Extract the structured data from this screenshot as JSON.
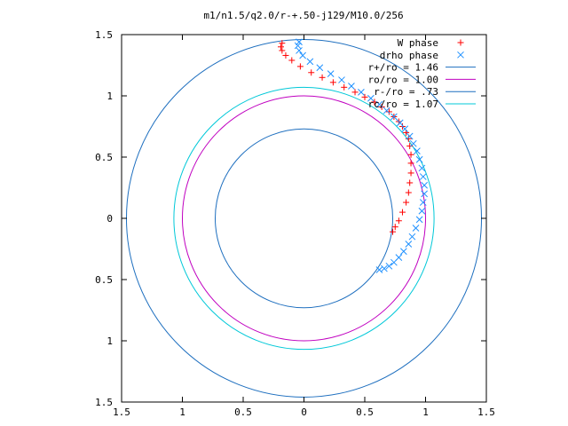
{
  "chart_data": {
    "type": "scatter",
    "title": "m1/n1.5/q2.0/r-+.50-j129/M10.0/256",
    "xlabel": "",
    "ylabel": "",
    "xlim": [
      -1.5,
      1.5
    ],
    "ylim": [
      -1.5,
      1.5
    ],
    "x_ticks": [
      "1.5",
      "1",
      "0.5",
      "0",
      "0.5",
      "1",
      "1.5"
    ],
    "y_ticks": [
      "1.5",
      "1",
      "0.5",
      "0",
      "0.5",
      "1",
      "1.5"
    ],
    "grid": false,
    "legend_position": "top-right",
    "series": [
      {
        "name": "W phase",
        "marker": "+",
        "color": "#ff0000",
        "x": [
          0.73,
          0.75,
          0.78,
          0.81,
          0.84,
          0.86,
          0.87,
          0.88,
          0.88,
          0.88,
          0.87,
          0.86,
          0.84,
          0.81,
          0.78,
          0.74,
          0.7,
          0.64,
          0.58,
          0.5,
          0.42,
          0.33,
          0.24,
          0.15,
          0.06,
          -0.03,
          -0.1,
          -0.15,
          -0.18,
          -0.19,
          -0.18
        ],
        "y": [
          -0.11,
          -0.07,
          -0.02,
          0.05,
          0.13,
          0.21,
          0.29,
          0.37,
          0.45,
          0.52,
          0.59,
          0.65,
          0.7,
          0.75,
          0.79,
          0.83,
          0.87,
          0.91,
          0.95,
          0.99,
          1.03,
          1.07,
          1.11,
          1.15,
          1.19,
          1.24,
          1.29,
          1.33,
          1.37,
          1.4,
          1.43
        ]
      },
      {
        "name": "drho phase",
        "marker": "x",
        "color": "#1e90ff",
        "x": [
          0.62,
          0.66,
          0.7,
          0.74,
          0.78,
          0.82,
          0.86,
          0.89,
          0.92,
          0.95,
          0.97,
          0.98,
          0.99,
          0.99,
          0.98,
          0.97,
          0.95,
          0.93,
          0.9,
          0.87,
          0.83,
          0.79,
          0.74,
          0.68,
          0.62,
          0.55,
          0.47,
          0.39,
          0.31,
          0.22,
          0.13,
          0.05,
          -0.01,
          -0.04,
          -0.05,
          -0.04
        ],
        "y": [
          -0.42,
          -0.41,
          -0.39,
          -0.36,
          -0.32,
          -0.27,
          -0.21,
          -0.15,
          -0.08,
          -0.01,
          0.06,
          0.13,
          0.2,
          0.27,
          0.34,
          0.41,
          0.48,
          0.55,
          0.61,
          0.67,
          0.73,
          0.78,
          0.83,
          0.88,
          0.93,
          0.98,
          1.03,
          1.08,
          1.13,
          1.18,
          1.23,
          1.28,
          1.33,
          1.37,
          1.41,
          1.44
        ]
      },
      {
        "name": "r+/ro = 1.46",
        "type": "circle",
        "radius": 1.46,
        "color": "#1e6fbf"
      },
      {
        "name": "ro/ro = 1.00",
        "type": "circle",
        "radius": 1.0,
        "color": "#c000c0"
      },
      {
        "name": "r-/ro = .73",
        "type": "circle",
        "radius": 0.73,
        "color": "#1e6fbf"
      },
      {
        "name": "rc/ro = 1.07",
        "type": "circle",
        "radius": 1.07,
        "color": "#00c8d8"
      }
    ]
  }
}
